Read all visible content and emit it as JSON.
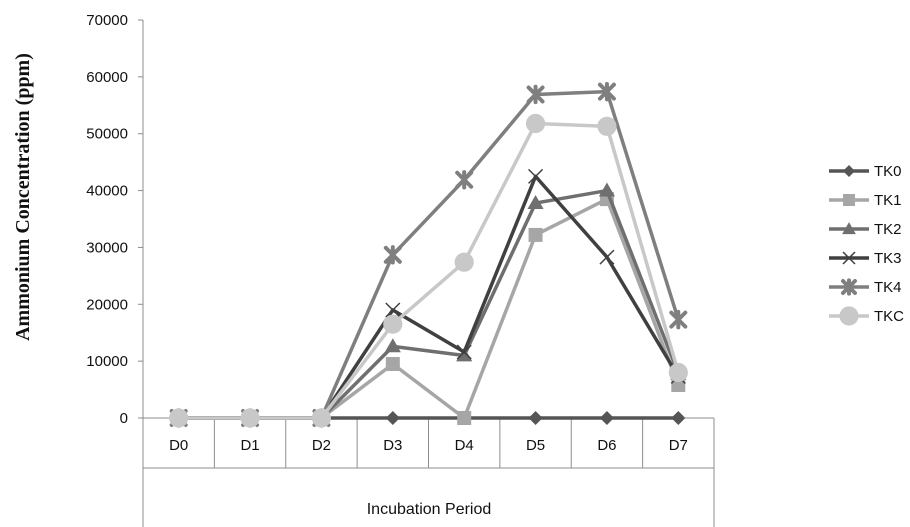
{
  "chart_data": {
    "type": "line",
    "title": "",
    "xlabel": "Incubation Period",
    "ylabel": "Ammonium Concentration (ppm)",
    "categories": [
      "D0",
      "D1",
      "D2",
      "D3",
      "D4",
      "D5",
      "D6",
      "D7"
    ],
    "ylim": [
      0,
      70000
    ],
    "yticks": [
      "0",
      "10000",
      "20000",
      "30000",
      "40000",
      "50000",
      "60000",
      "70000"
    ],
    "grid": false,
    "legend_position": "right",
    "series": [
      {
        "name": "TK0",
        "marker": "diamond",
        "color": "#555555",
        "values": [
          0,
          0,
          0,
          0,
          0,
          0,
          0,
          0
        ]
      },
      {
        "name": "TK1",
        "marker": "square",
        "color": "#a6a6a6",
        "values": [
          0,
          0,
          0,
          9500,
          0,
          32200,
          38500,
          5800
        ]
      },
      {
        "name": "TK2",
        "marker": "triangle",
        "color": "#6f6f6f",
        "values": [
          0,
          0,
          0,
          12600,
          11000,
          37800,
          40000,
          7800
        ]
      },
      {
        "name": "TK3",
        "marker": "x",
        "color": "#404040",
        "values": [
          0,
          0,
          0,
          19000,
          11600,
          42500,
          28300,
          7300
        ]
      },
      {
        "name": "TK4",
        "marker": "star",
        "color": "#7f7f7f",
        "values": [
          0,
          0,
          0,
          28700,
          41900,
          56900,
          57400,
          17300
        ]
      },
      {
        "name": "TKC",
        "marker": "circle",
        "color": "#c8c8c8",
        "values": [
          0,
          0,
          0,
          16500,
          27400,
          51800,
          51300,
          8000
        ]
      }
    ]
  }
}
